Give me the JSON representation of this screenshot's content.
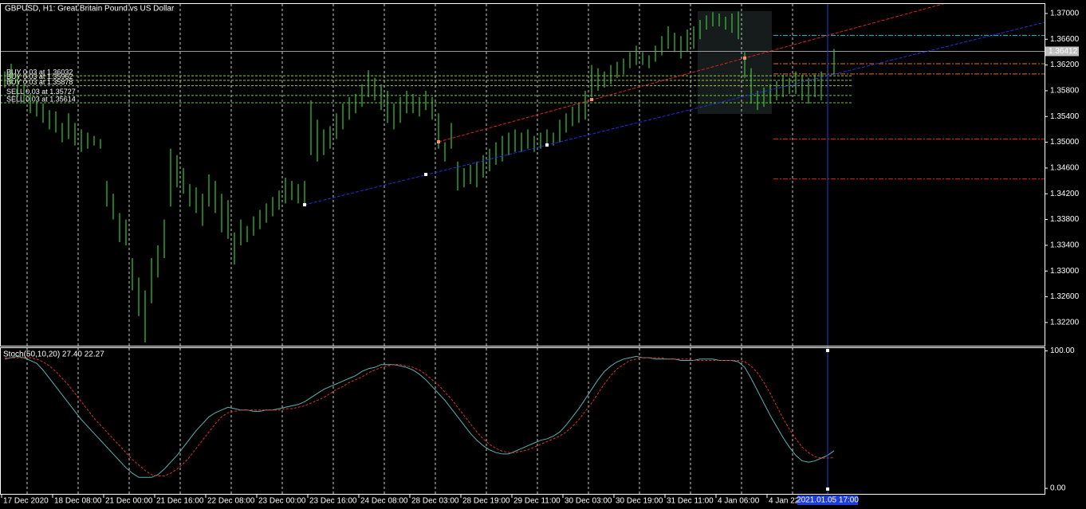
{
  "chart_data": [
    {
      "type": "hilo",
      "title": "GBPUSD, H1:  Great Britain Pound vs US Dollar",
      "color": "#3cc83c",
      "cursor_color": "#1e3cdc",
      "categories": [
        "17 Dec 2020",
        null,
        null,
        null,
        null,
        null,
        null,
        null,
        "18 Dec 08:00",
        null,
        null,
        null,
        null,
        null,
        null,
        null,
        "21 Dec 00:00",
        null,
        null,
        null,
        null,
        null,
        null,
        null,
        "21 Dec 16:00",
        null,
        null,
        null,
        null,
        null,
        null,
        null,
        "22 Dec 08:00",
        null,
        null,
        null,
        null,
        null,
        null,
        null,
        "23 Dec 00:00",
        null,
        null,
        null,
        null,
        null,
        null,
        null,
        "23 Dec 16:00",
        null,
        null,
        null,
        null,
        null,
        null,
        null,
        "24 Dec 08:00",
        null,
        null,
        null,
        null,
        null,
        null,
        null,
        "28 Dec 03:00",
        null,
        null,
        null,
        null,
        null,
        null,
        null,
        "28 Dec 19:00",
        null,
        null,
        null,
        null,
        null,
        null,
        null,
        "29 Dec 11:00",
        null,
        null,
        null,
        null,
        null,
        null,
        null,
        "30 Dec 03:00",
        null,
        null,
        null,
        null,
        null,
        null,
        null,
        "30 Dec 19:00",
        null,
        null,
        null,
        null,
        null,
        null,
        null,
        "31 Dec 11:00",
        null,
        null,
        null,
        null,
        null,
        null,
        null,
        "4 Jan 06:00",
        null,
        null,
        null,
        null,
        null,
        null,
        null,
        "4 Jan 22:00",
        null,
        null,
        null,
        null,
        null,
        null,
        null,
        null,
        "2021.01.05 17:00",
        null
      ],
      "high": [
        1.361,
        1.3622,
        1.3605,
        1.359,
        1.3575,
        1.3565,
        1.356,
        1.355,
        1.3548,
        1.353,
        1.3545,
        1.353,
        1.352,
        1.3515,
        1.351,
        1.3505,
        1.344,
        1.342,
        1.339,
        1.338,
        1.332,
        1.329,
        1.327,
        1.332,
        1.334,
        1.338,
        1.349,
        1.348,
        1.346,
        1.3435,
        1.343,
        1.342,
        1.345,
        1.344,
        1.342,
        1.341,
        1.336,
        1.338,
        1.337,
        1.3385,
        1.3395,
        1.3405,
        1.3415,
        1.3425,
        1.3445,
        1.344,
        1.3435,
        1.344,
        1.3565,
        1.3535,
        1.352,
        1.3525,
        1.3545,
        1.356,
        1.357,
        1.3575,
        1.359,
        1.3612,
        1.36,
        1.359,
        1.358,
        1.356,
        1.357,
        1.358,
        1.3575,
        1.357,
        1.358,
        1.357,
        1.3545,
        1.35,
        1.353,
        1.347,
        1.346,
        1.3465,
        1.347,
        1.348,
        1.349,
        1.35,
        1.351,
        1.3515,
        1.352,
        1.3515,
        1.352,
        1.351,
        1.3515,
        1.352,
        1.3515,
        1.3535,
        1.3545,
        1.3555,
        1.356,
        1.358,
        1.362,
        1.3615,
        1.361,
        1.362,
        1.3625,
        1.363,
        1.364,
        1.365,
        1.364,
        1.3635,
        1.365,
        1.3665,
        1.368,
        1.367,
        1.3665,
        1.3675,
        1.368,
        1.369,
        1.3697,
        1.3702,
        1.37,
        1.3695,
        1.37,
        1.3703,
        1.364,
        1.3615,
        1.358,
        1.3585,
        1.359,
        1.3595,
        1.3605,
        1.36,
        1.361,
        1.3605,
        1.36,
        1.3605,
        1.361,
        1.362,
        1.3645
      ],
      "low": [
        1.3585,
        1.359,
        1.357,
        1.356,
        1.3545,
        1.354,
        1.353,
        1.352,
        1.3515,
        1.35,
        1.3505,
        1.3495,
        1.3485,
        1.349,
        1.3495,
        1.349,
        1.34,
        1.338,
        1.3345,
        1.334,
        1.327,
        1.323,
        1.3189,
        1.325,
        1.329,
        1.332,
        1.34,
        1.343,
        1.342,
        1.34,
        1.339,
        1.337,
        1.34,
        1.339,
        1.336,
        1.335,
        1.331,
        1.334,
        1.3345,
        1.3355,
        1.3365,
        1.3375,
        1.3385,
        1.3395,
        1.3405,
        1.341,
        1.3405,
        1.3405,
        1.348,
        1.347,
        1.348,
        1.349,
        1.3505,
        1.352,
        1.3535,
        1.3545,
        1.3555,
        1.357,
        1.3565,
        1.355,
        1.353,
        1.352,
        1.353,
        1.3545,
        1.3545,
        1.354,
        1.355,
        1.3535,
        1.349,
        1.347,
        1.349,
        1.3425,
        1.343,
        1.3435,
        1.343,
        1.3445,
        1.3455,
        1.3465,
        1.347,
        1.348,
        1.3485,
        1.3485,
        1.349,
        1.3485,
        1.349,
        1.3495,
        1.3495,
        1.35,
        1.3515,
        1.3525,
        1.353,
        1.3535,
        1.357,
        1.358,
        1.3585,
        1.359,
        1.36,
        1.3605,
        1.3615,
        1.362,
        1.362,
        1.3615,
        1.3625,
        1.3635,
        1.3645,
        1.364,
        1.363,
        1.364,
        1.3645,
        1.366,
        1.3675,
        1.368,
        1.368,
        1.3675,
        1.367,
        1.366,
        1.36,
        1.356,
        1.355,
        1.3555,
        1.356,
        1.3565,
        1.357,
        1.3575,
        1.3575,
        1.3565,
        1.356,
        1.357,
        1.3565,
        1.359,
        1.3605
      ],
      "ylim": [
        1.3184,
        1.3716
      ],
      "yticks": [
        {
          "value": 1.37,
          "label": "1.37000"
        },
        {
          "value": 1.366,
          "label": "1.36600"
        },
        {
          "value": 1.362,
          "label": "1.36200"
        },
        {
          "value": 1.358,
          "label": "1.35800"
        },
        {
          "value": 1.354,
          "label": "1.35400"
        },
        {
          "value": 1.35,
          "label": "1.35000"
        },
        {
          "value": 1.346,
          "label": "1.34600"
        },
        {
          "value": 1.342,
          "label": "1.34200"
        },
        {
          "value": 1.338,
          "label": "1.33800"
        },
        {
          "value": 1.334,
          "label": "1.33400"
        },
        {
          "value": 1.33,
          "label": "1.33000"
        },
        {
          "value": 1.326,
          "label": "1.32600"
        },
        {
          "value": 1.322,
          "label": "1.32200"
        }
      ],
      "bid": 1.36412,
      "orders": [
        {
          "label": "BUY 0.03 at 1.36032",
          "value": 1.36032,
          "color": "#9acd32"
        },
        {
          "label": "BUY 0.03 at 1.35962",
          "value": 1.35962,
          "color": "#9acd32"
        },
        {
          "label": "BUY 0.03 at 1.35878",
          "value": 1.35878,
          "color": "#9acd32"
        },
        {
          "label": "SELL 0.03 at 1.35727",
          "value": 1.35727,
          "color": "#66cc33"
        },
        {
          "label": "SELL 0.03 at 1.35614",
          "value": 1.35614,
          "color": "#66cc33"
        }
      ],
      "levels": [
        {
          "value": 1.3666,
          "color": "#20c0d0"
        },
        {
          "value": 1.3622,
          "color": "#e07020"
        },
        {
          "value": 1.3606,
          "color": "#e07020"
        },
        {
          "value": 1.3505,
          "color": "#e02020"
        },
        {
          "value": 1.3443,
          "color": "#e02020"
        }
      ],
      "trendlines": [
        {
          "color": "#e02020",
          "marker_color": "#ff9070",
          "points": [
            [
              68,
              1.35007
            ],
            [
              92,
              1.35663
            ],
            [
              116,
              1.36307
            ]
          ]
        },
        {
          "color": "#2030e0",
          "marker_color": "#ffffff",
          "points": [
            [
              47,
              1.34029
            ],
            [
              66,
              1.345
            ],
            [
              85,
              1.34957
            ]
          ]
        }
      ]
    },
    {
      "type": "line",
      "title": "Stoch(50,10,20) 27.40 22.27",
      "ylim": [
        -4,
        102
      ],
      "yticks": [
        {
          "value": 100,
          "label": "100.00"
        },
        {
          "value": 0,
          "label": "0.00"
        }
      ],
      "series": [
        {
          "color": "#5ab4b4",
          "dash": false,
          "values": [
            94,
            95,
            96,
            95,
            93,
            91,
            86,
            80,
            74,
            68,
            62,
            56,
            50,
            45,
            40,
            35,
            30,
            25,
            20,
            15,
            11,
            8,
            8,
            8,
            10,
            14,
            19,
            24,
            30,
            36,
            42,
            47,
            52,
            55,
            57,
            59,
            58,
            57,
            57,
            56,
            56,
            57,
            57,
            58,
            59,
            60,
            61,
            63,
            66,
            69,
            72,
            74,
            76,
            78,
            80,
            82,
            85,
            87,
            88,
            90,
            90,
            90,
            89,
            88,
            86,
            83,
            79,
            74,
            69,
            64,
            58,
            52,
            46,
            40,
            35,
            31,
            28,
            26,
            25,
            25,
            27,
            29,
            31,
            33,
            35,
            36,
            38,
            41,
            46,
            52,
            58,
            65,
            72,
            79,
            85,
            89,
            92,
            94,
            95,
            96,
            95,
            95,
            94,
            94,
            94,
            94,
            93,
            93,
            93,
            94,
            94,
            94,
            93,
            93,
            93,
            92,
            88,
            80,
            71,
            62,
            53,
            45,
            37,
            30,
            24,
            20,
            19,
            20,
            22,
            24,
            27.4
          ]
        },
        {
          "color": "#e03030",
          "dash": true,
          "values": [
            95,
            95,
            95,
            95,
            95,
            94,
            92,
            89,
            85,
            80,
            75,
            69,
            63,
            57,
            51,
            46,
            41,
            36,
            31,
            26,
            21,
            17,
            13,
            10,
            9,
            9,
            11,
            14,
            18,
            23,
            29,
            35,
            41,
            47,
            52,
            55,
            56,
            57,
            57,
            57,
            57,
            57,
            57,
            57,
            58,
            58,
            59,
            60,
            62,
            64,
            66,
            69,
            72,
            74,
            77,
            79,
            81,
            84,
            86,
            88,
            89,
            90,
            90,
            89,
            88,
            86,
            83,
            79,
            75,
            70,
            65,
            59,
            53,
            47,
            41,
            36,
            32,
            29,
            27,
            26,
            26,
            27,
            28,
            30,
            32,
            34,
            36,
            38,
            41,
            45,
            50,
            56,
            62,
            69,
            76,
            82,
            87,
            90,
            93,
            94,
            95,
            95,
            95,
            95,
            94,
            94,
            94,
            94,
            93,
            93,
            93,
            93,
            93,
            93,
            93,
            93,
            92,
            89,
            84,
            77,
            69,
            60,
            51,
            43,
            36,
            30,
            26,
            23,
            22,
            22,
            22.27
          ]
        }
      ]
    }
  ]
}
